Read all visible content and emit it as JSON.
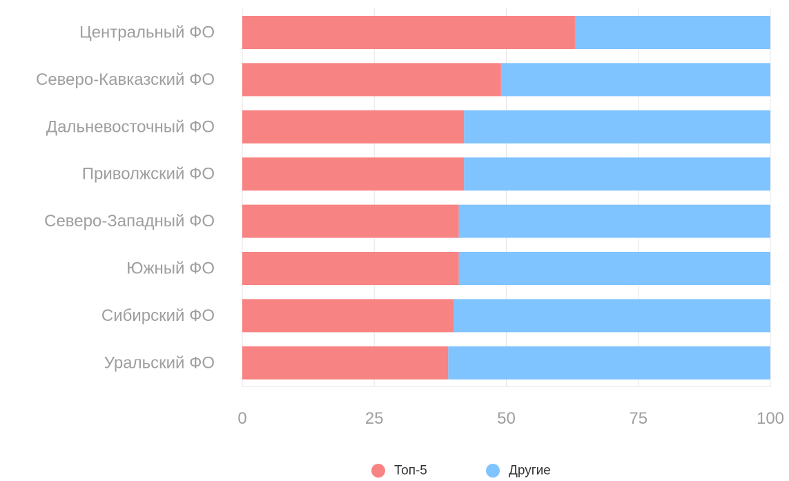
{
  "chart_data": {
    "type": "bar",
    "orientation": "horizontal",
    "stacked": true,
    "categories": [
      "Центральный ФО",
      "Северо-Кавказский ФО",
      "Дальневосточный ФО",
      "Приволжский ФО",
      "Северо-Западный ФО",
      "Южный ФО",
      "Сибирский ФО",
      "Уральский ФО"
    ],
    "series": [
      {
        "name": "Топ-5",
        "color": "#f88383",
        "values": [
          63,
          49,
          42,
          42,
          41,
          41,
          40,
          39
        ]
      },
      {
        "name": "Другие",
        "color": "#7fc4ff",
        "values": [
          37,
          51,
          58,
          58,
          59,
          59,
          60,
          61
        ]
      }
    ],
    "xlim": [
      0,
      100
    ],
    "xticks": [
      "0",
      "25",
      "50",
      "75",
      "100"
    ],
    "grid": true,
    "legend_position": "bottom"
  }
}
